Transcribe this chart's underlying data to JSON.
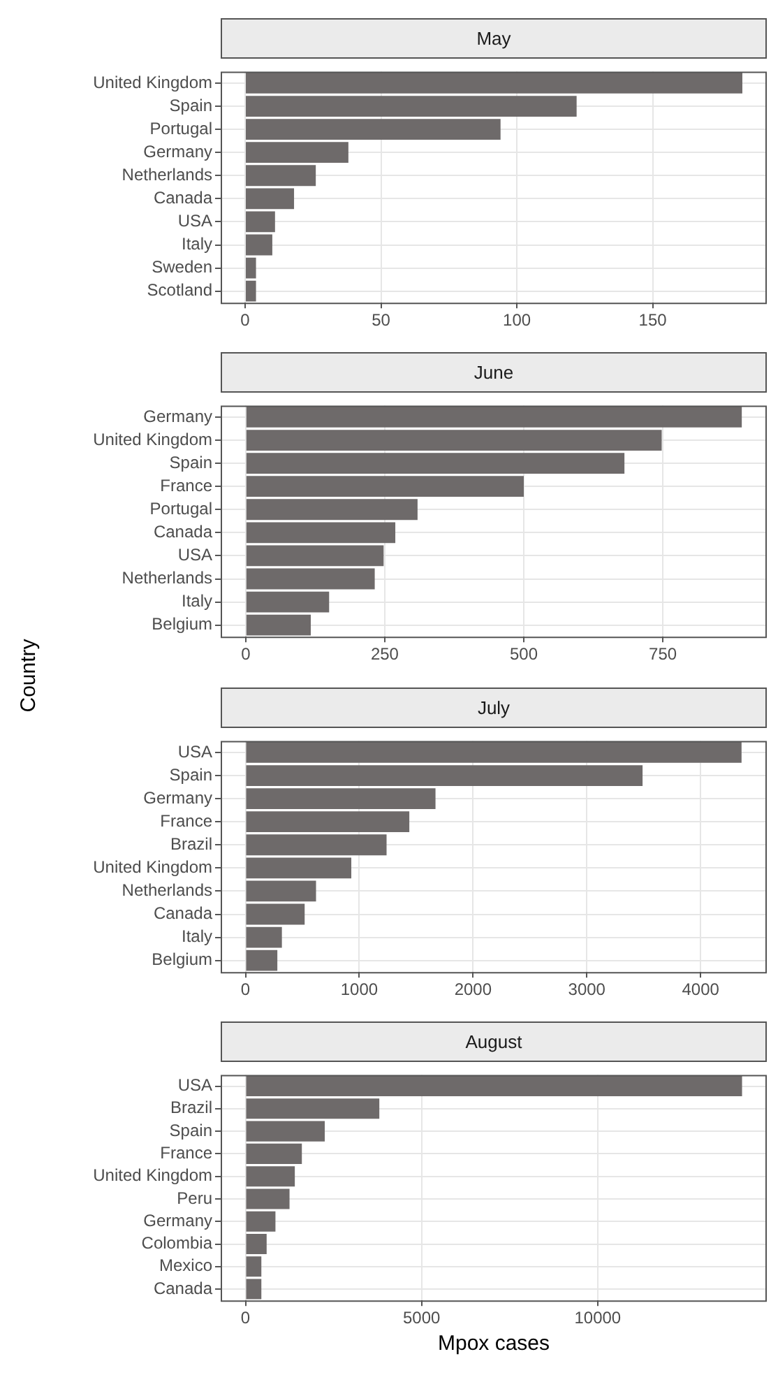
{
  "chart_data": [
    {
      "type": "bar",
      "orientation": "horizontal",
      "title": "May",
      "categories": [
        "United Kingdom",
        "Spain",
        "Portugal",
        "Germany",
        "Netherlands",
        "Canada",
        "USA",
        "Italy",
        "Sweden",
        "Scotland"
      ],
      "values": [
        183,
        122,
        94,
        38,
        26,
        18,
        11,
        10,
        4,
        4
      ],
      "color": "#6e6a6a",
      "xlim": [
        -9,
        192
      ],
      "xticks": [
        0,
        50,
        100,
        150
      ],
      "grid": true
    },
    {
      "type": "bar",
      "orientation": "horizontal",
      "title": "June",
      "ylabel": "Country",
      "categories": [
        "Germany",
        "United Kingdom",
        "Spain",
        "France",
        "Portugal",
        "Canada",
        "USA",
        "Netherlands",
        "Italy",
        "Belgium"
      ],
      "values": [
        892,
        748,
        681,
        500,
        309,
        269,
        248,
        232,
        150,
        117
      ],
      "color": "#6e6a6a",
      "xlim": [
        -45,
        937
      ],
      "xticks": [
        0,
        250,
        500,
        750
      ],
      "grid": true
    },
    {
      "type": "bar",
      "orientation": "horizontal",
      "title": "July",
      "categories": [
        "USA",
        "Spain",
        "Germany",
        "France",
        "Brazil",
        "United Kingdom",
        "Netherlands",
        "Canada",
        "Italy",
        "Belgium"
      ],
      "values": [
        4360,
        3490,
        1670,
        1440,
        1240,
        930,
        620,
        520,
        320,
        280
      ],
      "color": "#6e6a6a",
      "xlim": [
        -218,
        4582
      ],
      "xticks": [
        0,
        1000,
        2000,
        3000,
        4000
      ],
      "grid": true
    },
    {
      "type": "bar",
      "orientation": "horizontal",
      "title": "August",
      "xlabel": "Mpox cases",
      "categories": [
        "USA",
        "Brazil",
        "Spain",
        "France",
        "United Kingdom",
        "Peru",
        "Germany",
        "Colombia",
        "Mexico",
        "Canada"
      ],
      "values": [
        14100,
        3800,
        2250,
        1600,
        1400,
        1250,
        850,
        600,
        450,
        450
      ],
      "color": "#6e6a6a",
      "xlim": [
        -705,
        14803
      ],
      "xticks": [
        0,
        5000,
        10000
      ],
      "grid": true
    }
  ]
}
